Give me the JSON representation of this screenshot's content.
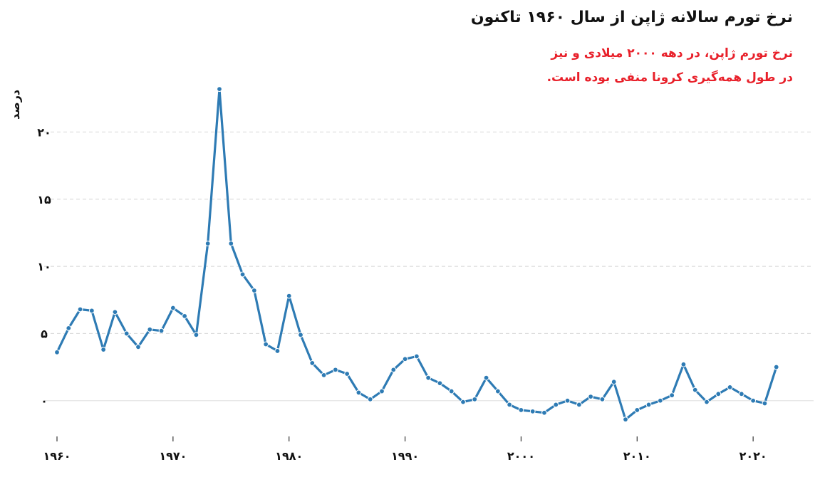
{
  "chart_data": {
    "type": "line",
    "title": "نرخ تورم سالانه ژاپن از سال ۱۹۶۰ تاکنون",
    "annotation": [
      "نرخ تورم ژاپن، در دهه ۲۰۰۰ میلادی و نیز",
      "در طول همه‌گیری کرونا منفی بوده است."
    ],
    "ylabel": "درصد",
    "xlabel": "",
    "xlim": [
      1960,
      2023
    ],
    "ylim": [
      -3.3,
      24
    ],
    "y_ticks": [
      0,
      5,
      10,
      15,
      20
    ],
    "y_tick_labels": [
      "۰",
      "۵",
      "۱۰",
      "۱۵",
      "۲۰"
    ],
    "x_ticks": [
      1960,
      1970,
      1980,
      1990,
      2000,
      2010,
      2020
    ],
    "x_tick_labels": [
      "۱۹۶۰",
      "۱۹۷۰",
      "۱۹۸۰",
      "۱۹۹۰",
      "۲۰۰۰",
      "۲۰۱۰",
      "۲۰۲۰"
    ],
    "grid": "horizontal-dashed",
    "x": [
      1960,
      1961,
      1962,
      1963,
      1964,
      1965,
      1966,
      1967,
      1968,
      1969,
      1970,
      1971,
      1972,
      1973,
      1974,
      1975,
      1976,
      1977,
      1978,
      1979,
      1980,
      1981,
      1982,
      1983,
      1984,
      1985,
      1986,
      1987,
      1988,
      1989,
      1990,
      1991,
      1992,
      1993,
      1994,
      1995,
      1996,
      1997,
      1998,
      1999,
      2000,
      2001,
      2002,
      2003,
      2004,
      2005,
      2006,
      2007,
      2008,
      2009,
      2010,
      2011,
      2012,
      2013,
      2014,
      2015,
      2016,
      2017,
      2018,
      2019,
      2020,
      2021,
      2022
    ],
    "values": [
      3.6,
      5.4,
      6.8,
      6.7,
      3.8,
      6.6,
      5.0,
      4.0,
      5.3,
      5.2,
      6.9,
      6.3,
      4.9,
      11.7,
      23.2,
      11.7,
      9.4,
      8.2,
      4.2,
      3.7,
      7.8,
      4.9,
      2.8,
      1.9,
      2.3,
      2.0,
      0.6,
      0.1,
      0.7,
      2.3,
      3.1,
      3.3,
      1.7,
      1.3,
      0.7,
      -0.1,
      0.1,
      1.7,
      0.7,
      -0.3,
      -0.7,
      -0.8,
      -0.9,
      -0.3,
      0.0,
      -0.3,
      0.3,
      0.1,
      1.4,
      -1.4,
      -0.7,
      -0.3,
      0.0,
      0.4,
      2.7,
      0.8,
      -0.1,
      0.5,
      1.0,
      0.5,
      0.0,
      -0.2,
      2.5
    ],
    "color": "#2e7bb4",
    "annotation_color": "#e8202a",
    "text_color": "#111111"
  }
}
